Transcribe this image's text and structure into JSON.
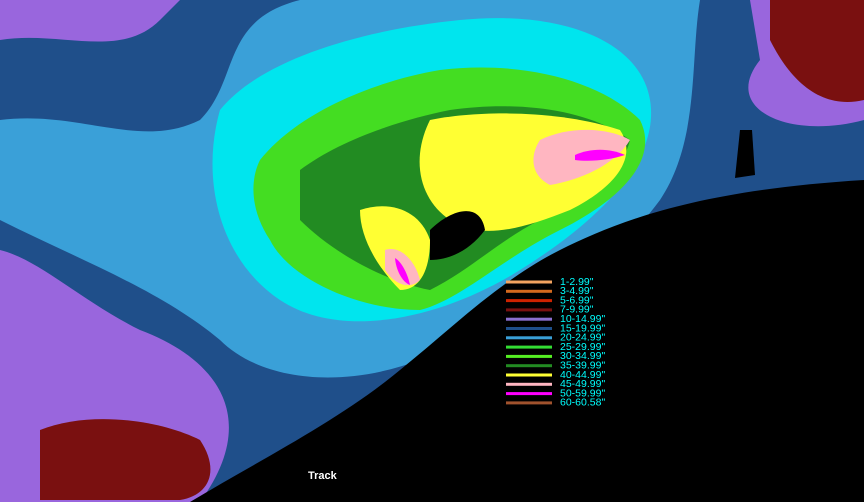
{
  "legend": {
    "items": [
      {
        "label": "1-2.99\"",
        "color": "#f4a460"
      },
      {
        "label": "3-4.99\"",
        "color": "#d2691e"
      },
      {
        "label": "5-6.99\"",
        "color": "#cc2200"
      },
      {
        "label": "7-9.99\"",
        "color": "#7a1010"
      },
      {
        "label": "10-14.99\"",
        "color": "#8a6fd0"
      },
      {
        "label": "15-19.99\"",
        "color": "#1e4f8a"
      },
      {
        "label": "20-24.99\"",
        "color": "#3aa0d8"
      },
      {
        "label": "25-29.99\"",
        "color": "#33dd33"
      },
      {
        "label": "30-34.99\"",
        "color": "#55ee22"
      },
      {
        "label": "35-39.99\"",
        "color": "#228b22"
      },
      {
        "label": "40-44.99\"",
        "color": "#ffff33"
      },
      {
        "label": "45-49.99\"",
        "color": "#ffb6c1"
      },
      {
        "label": "50-59.99\"",
        "color": "#ff00ff"
      },
      {
        "label": "60-60.58\"",
        "color": "#a0522d"
      }
    ]
  },
  "track_label": "Track"
}
